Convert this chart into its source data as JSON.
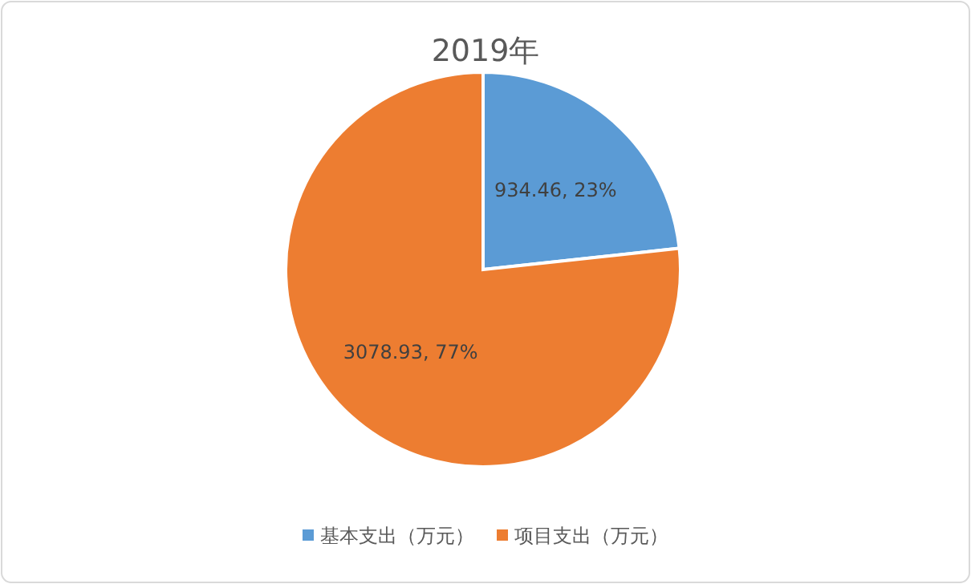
{
  "chart_data": {
    "type": "pie",
    "title": "2019年",
    "categories": [
      "基本支出（万元）",
      "项目支出（万元）"
    ],
    "values": [
      934.46,
      3078.93
    ],
    "colors": [
      "#5b9bd5",
      "#ed7d31"
    ],
    "value_labels": [
      "934.46, 23%",
      "3078.93, 77%"
    ],
    "legend": "bottom"
  }
}
